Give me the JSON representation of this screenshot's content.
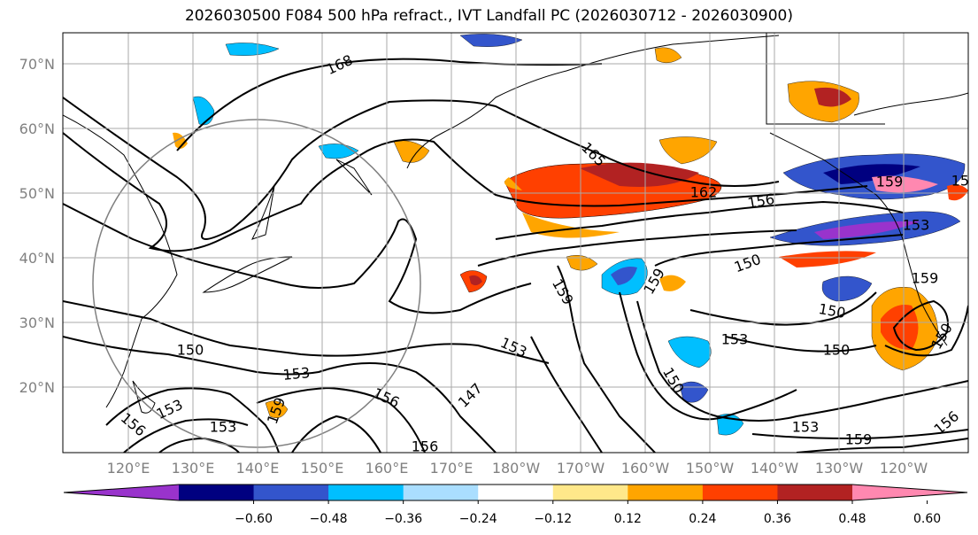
{
  "title": "2026030500 F084 500 hPa refract., IVT Landfall PC (2026030712 - 2026030900)",
  "lat_labels": [
    "70°N",
    "60°N",
    "50°N",
    "40°N",
    "30°N",
    "20°N"
  ],
  "lon_labels": [
    "120°E",
    "130°E",
    "140°E",
    "150°E",
    "160°E",
    "170°E",
    "180°W",
    "170°W",
    "160°W",
    "150°W",
    "140°W",
    "130°W",
    "120°W"
  ],
  "colorbar": {
    "ticks": [
      "−0.60",
      "−0.48",
      "−0.36",
      "−0.24",
      "−0.12",
      "0.12",
      "0.24",
      "0.36",
      "0.48",
      "0.60"
    ],
    "colors": [
      "#9933cc",
      "#000080",
      "#3355cc",
      "#00bfff",
      "#aadeff",
      "#ffffff",
      "#ffe88a",
      "#ffa500",
      "#ff4000",
      "#b22222",
      "#ff88b0"
    ]
  },
  "contour_labels": [
    "168",
    "165",
    "162",
    "156",
    "159",
    "153",
    "150",
    "159",
    "159",
    "153",
    "147",
    "150",
    "150",
    "153",
    "150",
    "156",
    "153",
    "153",
    "159",
    "153",
    "156",
    "159",
    "153",
    "150",
    "150",
    "159",
    "156",
    "159",
    "156"
  ]
}
